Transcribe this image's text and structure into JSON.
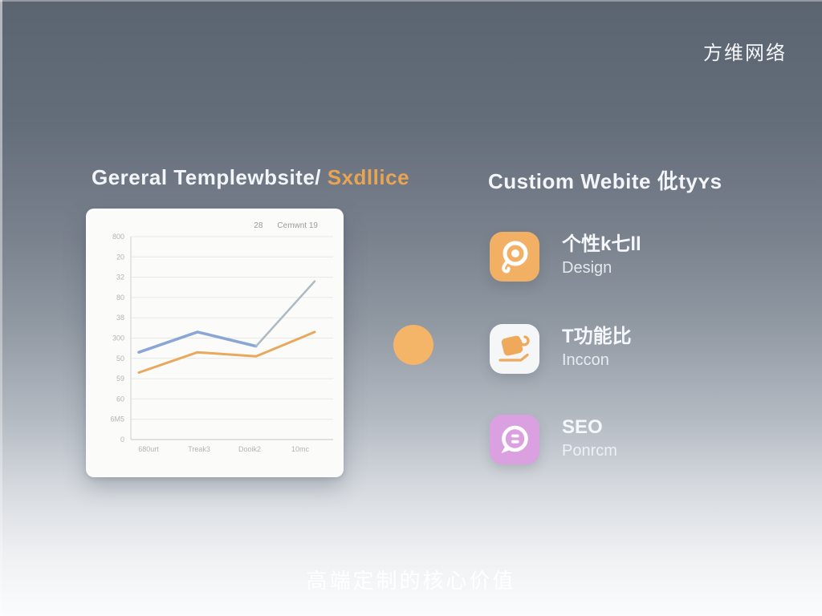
{
  "brand": "方维网络",
  "left_section": {
    "heading_main": "Gereral Templewbsite/ ",
    "heading_accent": "Sxdllice"
  },
  "right_section": {
    "heading": "Custiom Webite 仳tyʏs",
    "items": [
      {
        "icon": "personalized-design-eye-icon",
        "icon_bg": "#f1b064",
        "title": "个性k七ll",
        "subtitle": "Design"
      },
      {
        "icon": "feature-bag-icon",
        "icon_bg": "#f5f6f8",
        "title": "T功能比",
        "subtitle": "Inccon"
      },
      {
        "icon": "seo-comment-icon",
        "icon_bg": "#dba0e0",
        "title": "SEO",
        "subtitle": "Ponrcm"
      }
    ]
  },
  "caption": "高端定制的核心价值",
  "colors": {
    "accent_orange": "#e8a452",
    "center_dot": "#f4b568",
    "background_top": "#5b6471",
    "background_bottom": "#fbfcfd",
    "card_background": "#fbfbf9"
  },
  "chart_data": {
    "type": "line",
    "title": "",
    "xlabel": "",
    "ylabel": "",
    "categories": [
      "680urt",
      "Treak3",
      "Dooik2",
      "10mc"
    ],
    "y_tick_labels": [
      "800",
      "20",
      "32",
      "80",
      "38",
      "300",
      "50",
      "59",
      "60",
      "6M5",
      "0"
    ],
    "legend": [
      "28",
      "Cemwnt 19"
    ],
    "legend_position": "top-right",
    "grid": true,
    "ylim": [
      0,
      100
    ],
    "series": [
      {
        "name": "28",
        "color": "#8aa6d6",
        "width": 3.5,
        "values": [
          43,
          53,
          46,
          null
        ]
      },
      {
        "name": "",
        "color": "#aeb9c4",
        "width": 2.5,
        "values": [
          null,
          null,
          46,
          78
        ]
      },
      {
        "name": "Cemwnt 19",
        "color": "#e9a95c",
        "width": 3,
        "values": [
          33,
          43,
          41,
          53
        ]
      }
    ]
  }
}
